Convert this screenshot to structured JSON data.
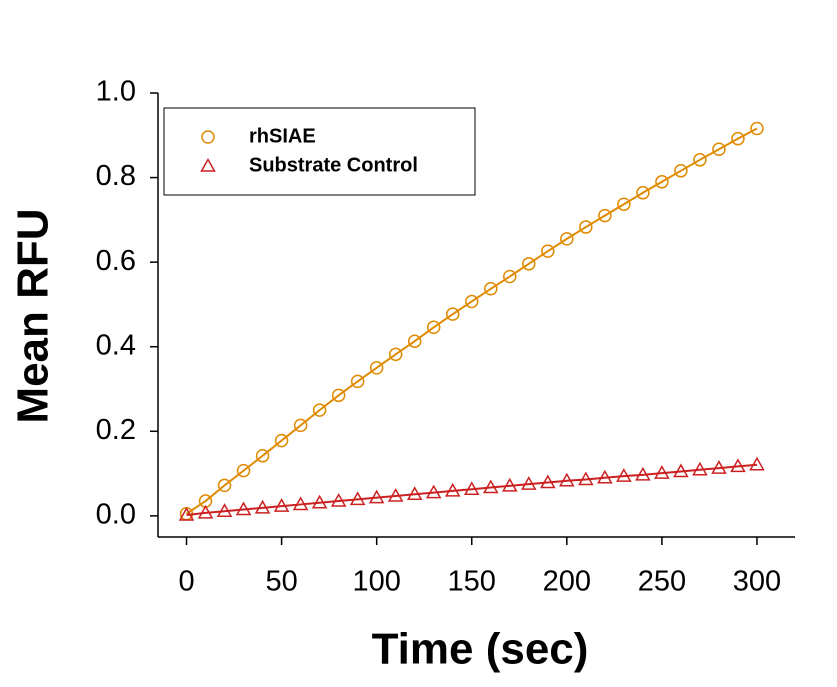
{
  "chart_data": {
    "type": "line",
    "x_label": "Time (sec)",
    "y_label": "Mean RFU",
    "x": [
      0,
      10,
      20,
      30,
      40,
      50,
      60,
      70,
      80,
      90,
      100,
      110,
      120,
      130,
      140,
      150,
      160,
      170,
      180,
      190,
      200,
      210,
      220,
      230,
      240,
      250,
      260,
      270,
      280,
      290,
      300
    ],
    "series": [
      {
        "name": "rhSIAE",
        "color": "#e08a00",
        "marker": "circle",
        "values": [
          0.005,
          0.035,
          0.072,
          0.107,
          0.142,
          0.178,
          0.214,
          0.25,
          0.285,
          0.318,
          0.35,
          0.382,
          0.413,
          0.446,
          0.477,
          0.507,
          0.537,
          0.566,
          0.596,
          0.626,
          0.655,
          0.683,
          0.71,
          0.737,
          0.764,
          0.79,
          0.816,
          0.842,
          0.867,
          0.892,
          0.916
        ]
      },
      {
        "name": "Substrate Control",
        "color": "#cc2020",
        "marker": "triangle",
        "values": [
          0.002,
          0.007,
          0.011,
          0.015,
          0.019,
          0.023,
          0.027,
          0.031,
          0.035,
          0.039,
          0.043,
          0.047,
          0.051,
          0.055,
          0.059,
          0.063,
          0.067,
          0.071,
          0.075,
          0.079,
          0.083,
          0.086,
          0.09,
          0.094,
          0.097,
          0.101,
          0.105,
          0.109,
          0.113,
          0.117,
          0.121
        ]
      }
    ],
    "xlim": [
      -15,
      320
    ],
    "xticks": [
      0,
      50,
      100,
      150,
      200,
      250,
      300
    ],
    "ylim": [
      -0.05,
      1.0
    ],
    "yticks": [
      {
        "value": 0,
        "label": "0.0"
      },
      0.2,
      0.4,
      0.6,
      0.8,
      {
        "value": 1,
        "label": "1.0"
      }
    ],
    "legend": "upper left"
  }
}
